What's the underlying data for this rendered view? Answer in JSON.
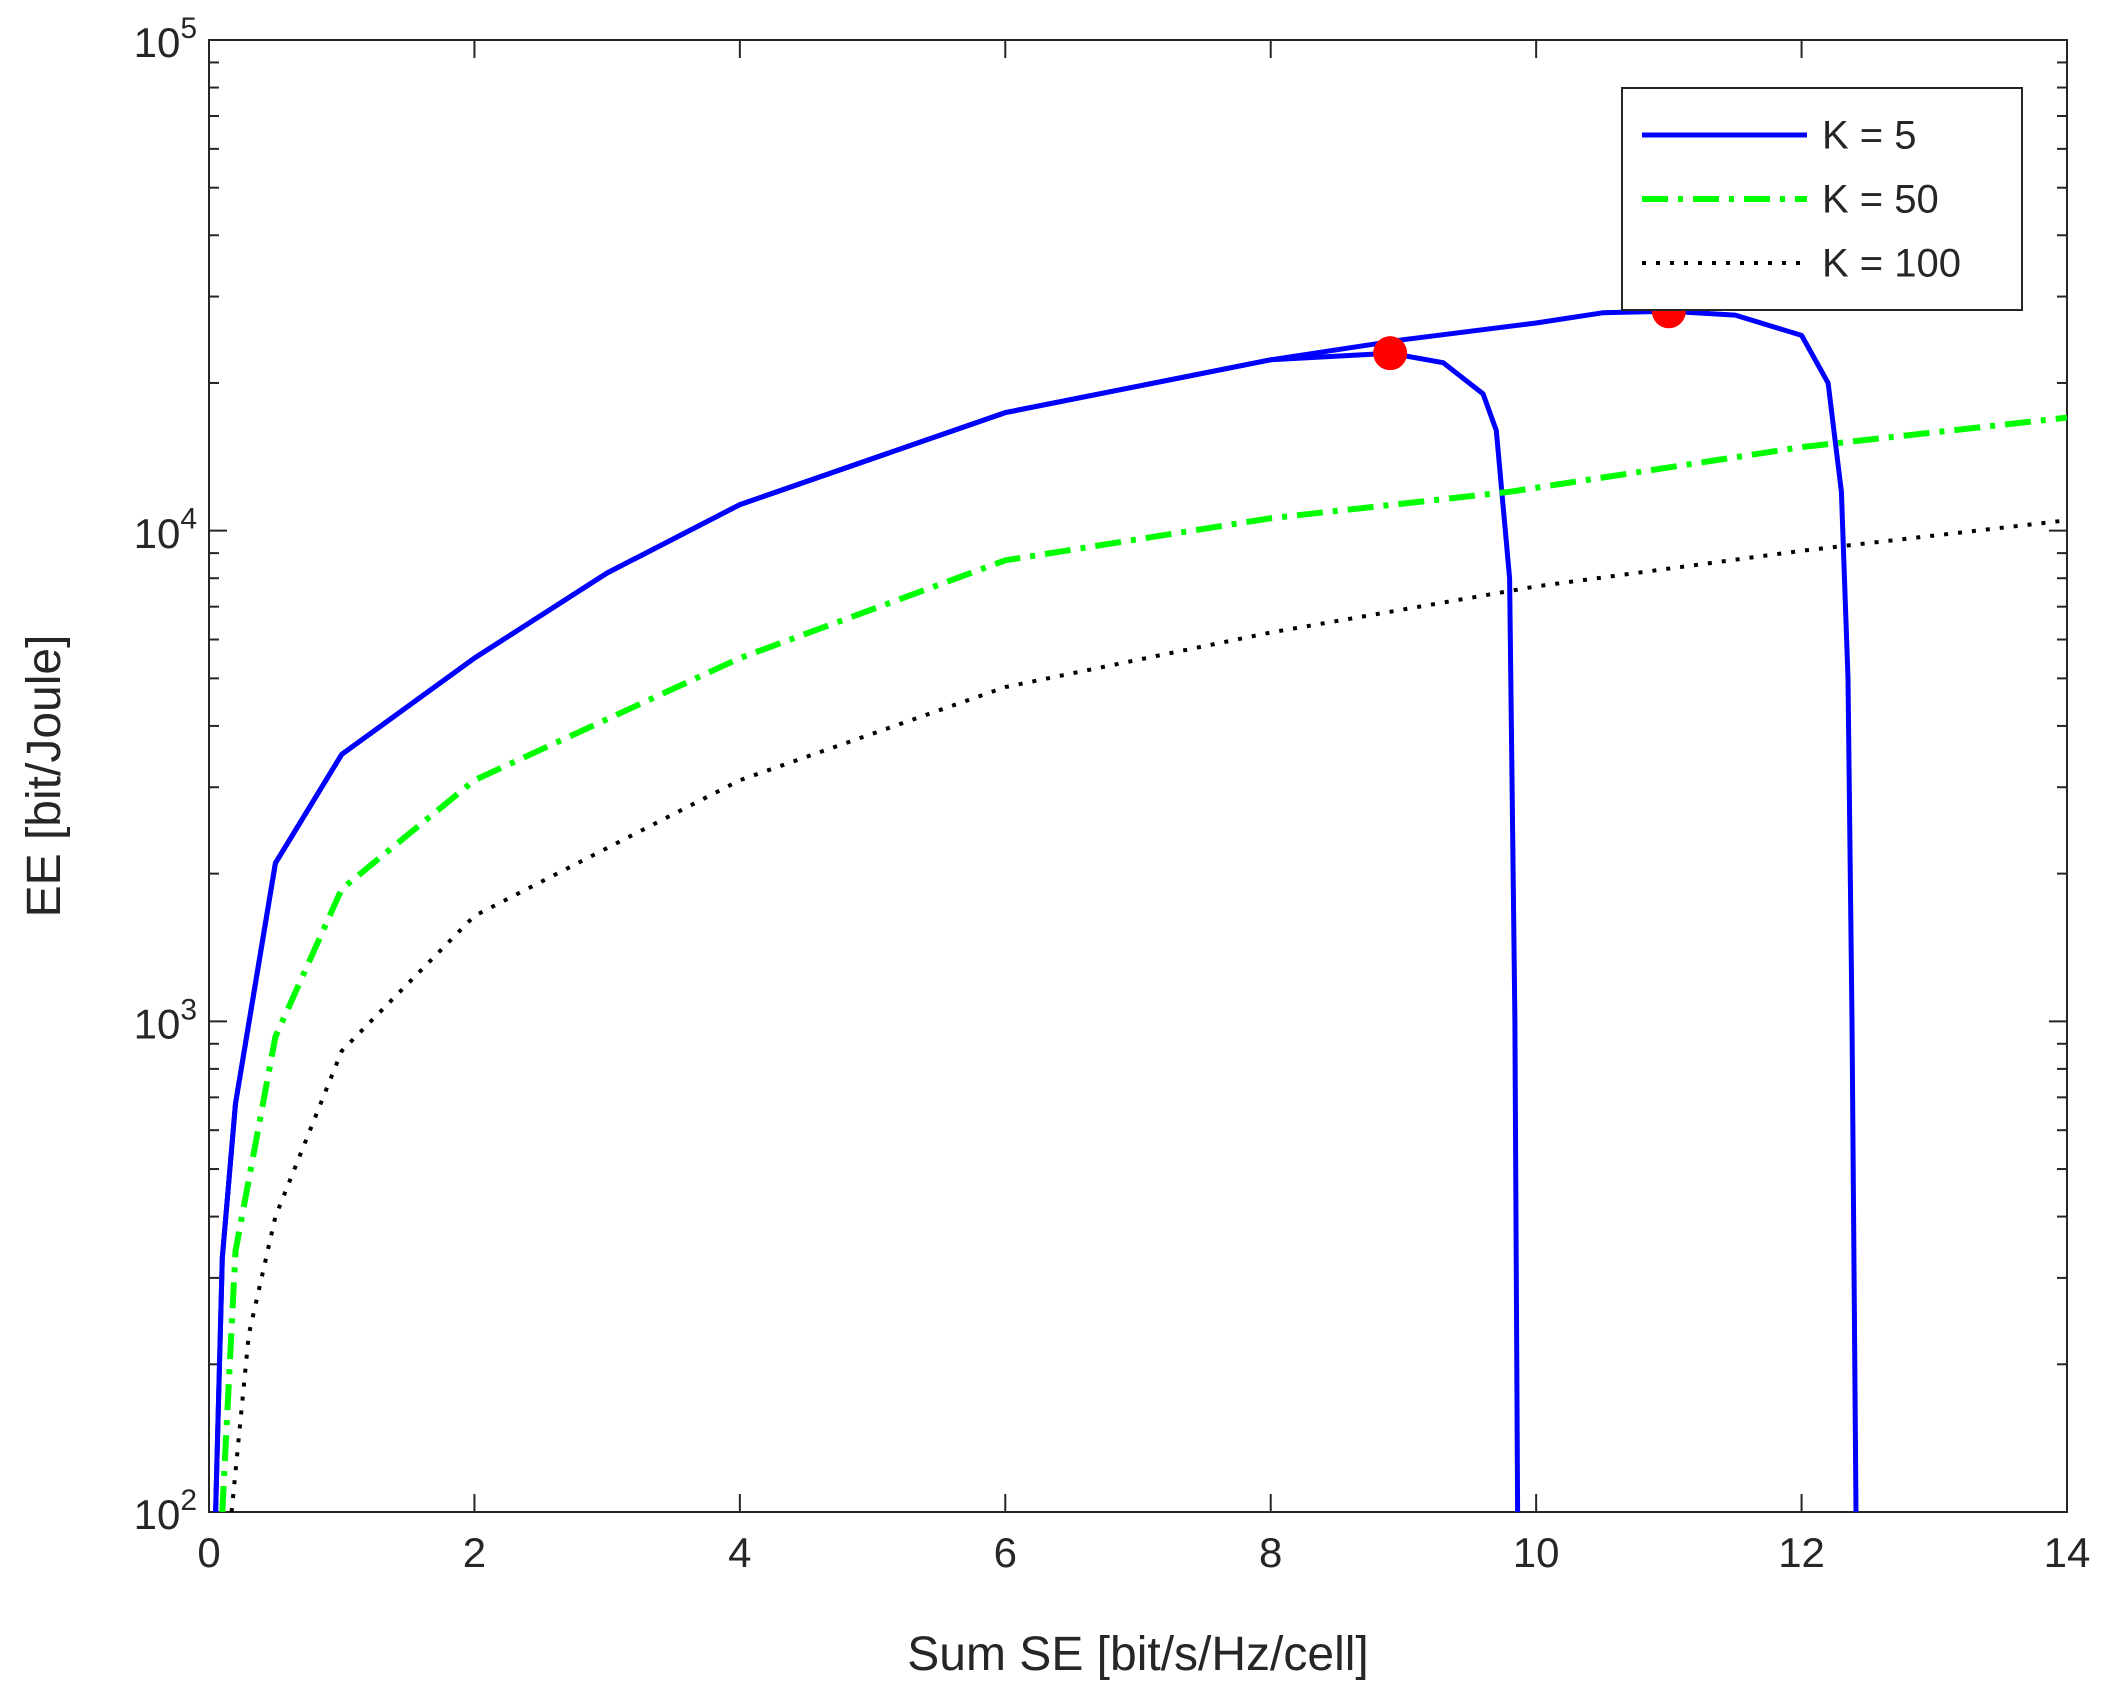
{
  "chart_data": {
    "type": "line",
    "x_label": "Sum SE [bit/s/Hz/cell]",
    "y_label": "EE [bit/Joule]",
    "log_y": true,
    "xlim": [
      0,
      14
    ],
    "xticks": [
      0,
      2,
      4,
      6,
      8,
      10,
      12,
      14
    ],
    "ylim": [
      100,
      100000
    ],
    "yticks": [
      {
        "value": 100,
        "label": "10^2"
      },
      {
        "value": 1000,
        "label": "10^3"
      },
      {
        "value": 10000,
        "label": "10^4"
      },
      {
        "value": 100000,
        "label": "10^5"
      }
    ],
    "yminorticks": [
      200,
      300,
      400,
      500,
      600,
      700,
      800,
      900,
      2000,
      3000,
      4000,
      5000,
      6000,
      7000,
      8000,
      9000,
      20000,
      30000,
      40000,
      50000,
      60000,
      70000,
      80000,
      90000
    ],
    "legend": "top-right",
    "series": [
      {
        "name": "K = 5",
        "color": "#0000ff",
        "style": "solid",
        "x": [
          0.05,
          0.1,
          0.2,
          0.5,
          1,
          2,
          3,
          4,
          6,
          8,
          8.9,
          9.3,
          9.6,
          9.7,
          9.8,
          9.84,
          9.86
        ],
        "values": [
          100,
          330,
          680,
          2100,
          3500,
          5500,
          8200,
          11300,
          17400,
          22300,
          23000,
          22000,
          19000,
          16000,
          8000,
          1000,
          100
        ]
      },
      {
        "color": "#0000ff",
        "style": "solid",
        "x": [
          0.05,
          0.1,
          0.2,
          0.5,
          1,
          2,
          3,
          4,
          6,
          8,
          9,
          10,
          10.5,
          11,
          11.5,
          12,
          12.2,
          12.3,
          12.35,
          12.38,
          12.41
        ],
        "values": [
          100,
          330,
          680,
          2100,
          3500,
          5500,
          8200,
          11300,
          17400,
          22300,
          24500,
          26500,
          27800,
          28000,
          27500,
          25000,
          20000,
          12000,
          5000,
          1000,
          100
        ]
      },
      {
        "name": "K = 50",
        "color": "#00ff00",
        "style": "dashdot",
        "x": [
          0.1,
          0.2,
          0.5,
          1,
          2,
          4,
          6,
          8,
          9.8,
          12,
          14
        ],
        "values": [
          100,
          340,
          930,
          1860,
          3100,
          5500,
          8700,
          10600,
          12000,
          14800,
          17000
        ]
      },
      {
        "name": "K = 100",
        "color": "#000000",
        "style": "dotted",
        "x": [
          0.17,
          0.3,
          0.5,
          1,
          2,
          4,
          6,
          8,
          10,
          12,
          14
        ],
        "values": [
          100,
          230,
          400,
          870,
          1640,
          3100,
          4800,
          6200,
          7700,
          9100,
          10500
        ]
      }
    ],
    "markers": {
      "color": "#ff0000",
      "x": [
        8.9,
        11.0
      ],
      "values": [
        23000,
        28000
      ]
    }
  }
}
